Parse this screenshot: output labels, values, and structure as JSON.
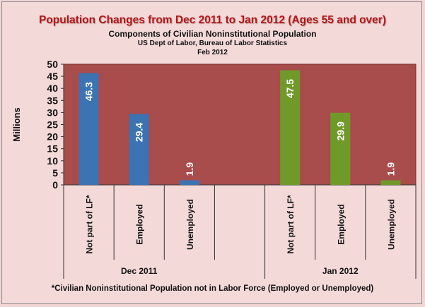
{
  "chart_data": {
    "type": "bar",
    "title": "Population Changes  from Dec 2011 to Jan 2012 (Ages 55 and over)",
    "subtitles": [
      "Components of Civilian Noninstitutional Population",
      "US Dept of Labor, Bureau of Labor Statistics",
      "Feb 2012"
    ],
    "ylabel": "Millions",
    "ylim": [
      0,
      50
    ],
    "yticks": [
      "0",
      "5",
      "10",
      "15",
      "20",
      "25",
      "30",
      "35",
      "40",
      "45",
      "50"
    ],
    "groups": [
      {
        "label": "Dec 2011",
        "color": "#3b73b3",
        "bars": [
          {
            "category": "Not part of LF*",
            "value": 46.3,
            "label": "46.3"
          },
          {
            "category": "Employed",
            "value": 29.4,
            "label": "29.4"
          },
          {
            "category": "Unemployed",
            "value": 1.9,
            "label": "1.9"
          }
        ]
      },
      {
        "label": "Jan 2012",
        "color": "#6f9a2a",
        "bars": [
          {
            "category": "Not part of LF*",
            "value": 47.5,
            "label": "47.5"
          },
          {
            "category": "Employed",
            "value": 29.9,
            "label": "29.9"
          },
          {
            "category": "Unemployed",
            "value": 1.9,
            "label": "1.9"
          }
        ]
      }
    ],
    "plot_background": "#a84c4c",
    "grid": false,
    "footnote": "*Civilian Noninstitutional Population not in Labor Force (Employed or Unemployed)"
  }
}
